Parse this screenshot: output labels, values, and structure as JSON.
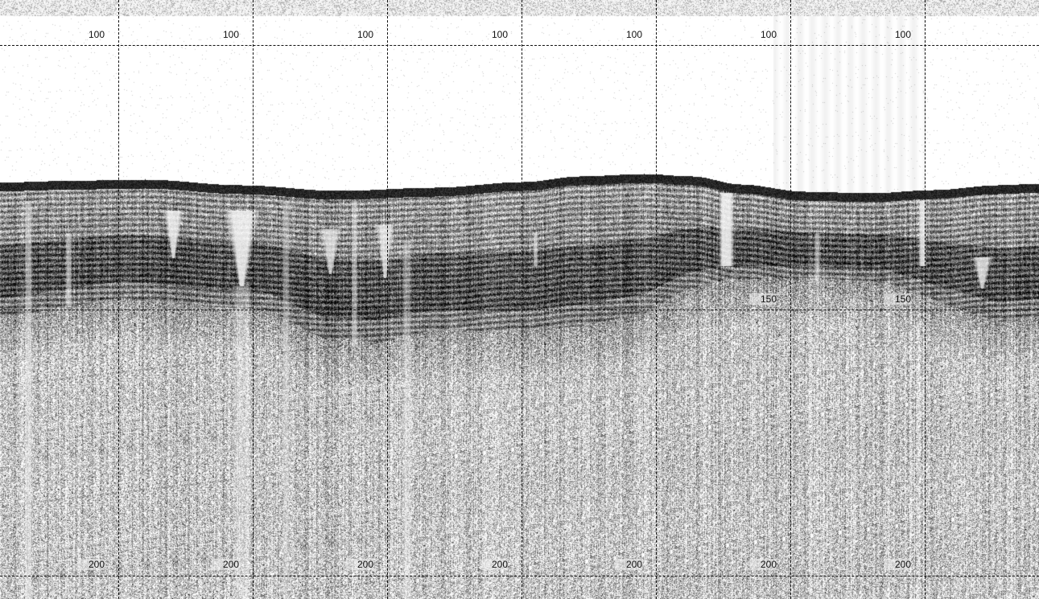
{
  "profile": {
    "type": "sub-bottom acoustic profile",
    "background": "#ffffff",
    "reflector_color": "#111111",
    "grid_color": "#111111",
    "depth_lines": [
      {
        "value": 100,
        "labels": [
          "100",
          "100",
          "100",
          "100",
          "100",
          "100",
          "100"
        ]
      },
      {
        "value": 150,
        "labels": [
          "150",
          "150"
        ]
      },
      {
        "value": 200,
        "labels": [
          "200",
          "200",
          "200",
          "200",
          "200",
          "200",
          "200"
        ]
      }
    ],
    "vertical_grid_count": 7
  }
}
